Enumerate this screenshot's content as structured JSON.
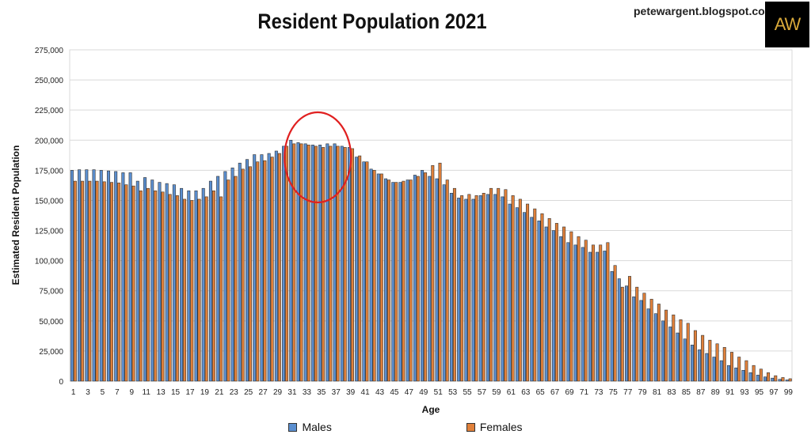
{
  "chart_data": {
    "type": "bar",
    "title": "Resident Population 2021",
    "xlabel": "Age",
    "ylabel": "Estimated Resident Population",
    "ylim": [
      0,
      275000
    ],
    "yticks": [
      "0",
      "25,000",
      "50,000",
      "75,000",
      "100,000",
      "125,000",
      "150,000",
      "175,000",
      "200,000",
      "225,000",
      "250,000",
      "275,000"
    ],
    "grid": true,
    "legend_position": "bottom",
    "x": [
      1,
      2,
      3,
      4,
      5,
      6,
      7,
      8,
      9,
      10,
      11,
      12,
      13,
      14,
      15,
      16,
      17,
      18,
      19,
      20,
      21,
      22,
      23,
      24,
      25,
      26,
      27,
      28,
      29,
      30,
      31,
      32,
      33,
      34,
      35,
      36,
      37,
      38,
      39,
      40,
      41,
      42,
      43,
      44,
      45,
      46,
      47,
      48,
      49,
      50,
      51,
      52,
      53,
      54,
      55,
      56,
      57,
      58,
      59,
      60,
      61,
      62,
      63,
      64,
      65,
      66,
      67,
      68,
      69,
      70,
      71,
      72,
      73,
      74,
      75,
      76,
      77,
      78,
      79,
      80,
      81,
      82,
      83,
      84,
      85,
      86,
      87,
      88,
      89,
      90,
      91,
      92,
      93,
      94,
      95,
      96,
      97,
      98,
      99
    ],
    "series": [
      {
        "name": "Males",
        "color": "#5b8fd0",
        "values": [
          175000,
          175500,
          175500,
          175500,
          175000,
          174500,
          174000,
          173000,
          173000,
          166000,
          169000,
          167000,
          165000,
          164000,
          163000,
          160000,
          158000,
          158000,
          160000,
          166000,
          170000,
          174000,
          177000,
          181000,
          184000,
          188000,
          188000,
          189000,
          191000,
          195000,
          200000,
          198000,
          197000,
          196000,
          196000,
          197000,
          197000,
          195000,
          194000,
          186000,
          182000,
          176000,
          172000,
          168000,
          165000,
          165000,
          167000,
          171000,
          175000,
          170000,
          168000,
          163000,
          156000,
          152000,
          151000,
          151000,
          154000,
          155000,
          155000,
          153000,
          147000,
          144000,
          140000,
          136000,
          133000,
          128000,
          125000,
          120000,
          115000,
          113000,
          111000,
          107000,
          107000,
          108000,
          91000,
          85000,
          79000,
          70000,
          67000,
          60000,
          56000,
          50000,
          45000,
          40000,
          35000,
          30000,
          26000,
          23000,
          20000,
          17000,
          13000,
          11000,
          9000,
          7000,
          5000,
          3500,
          2500,
          1500,
          1000
        ]
      },
      {
        "name": "Females",
        "color": "#e0803a",
        "values": [
          166000,
          166000,
          166000,
          166000,
          165500,
          165000,
          164500,
          163000,
          162000,
          158000,
          160000,
          158000,
          157000,
          155000,
          154000,
          151000,
          150000,
          151000,
          153000,
          158000,
          153000,
          167000,
          170000,
          176000,
          178000,
          182000,
          183000,
          186000,
          189000,
          195000,
          197000,
          197000,
          196000,
          195000,
          194000,
          195000,
          195000,
          194000,
          193000,
          187000,
          182000,
          175000,
          172000,
          167000,
          165000,
          166000,
          167000,
          170000,
          173000,
          179000,
          181000,
          167000,
          160000,
          154000,
          155000,
          154000,
          156000,
          160000,
          160000,
          159000,
          154000,
          151000,
          147000,
          143000,
          139000,
          135000,
          131000,
          128000,
          124000,
          120000,
          117000,
          113000,
          113000,
          115000,
          96000,
          78000,
          87000,
          78000,
          73000,
          68000,
          64000,
          59000,
          55000,
          51000,
          48000,
          42000,
          38000,
          34000,
          31000,
          28000,
          24000,
          20000,
          17000,
          13000,
          10000,
          7000,
          4500,
          3000,
          2000
        ]
      }
    ],
    "annotation": {
      "type": "circle",
      "color": "#e02020",
      "around_ages": [
        30,
        39
      ]
    }
  },
  "header": {
    "site": "petewargent.blogspot.com",
    "logo_text": "AW"
  }
}
